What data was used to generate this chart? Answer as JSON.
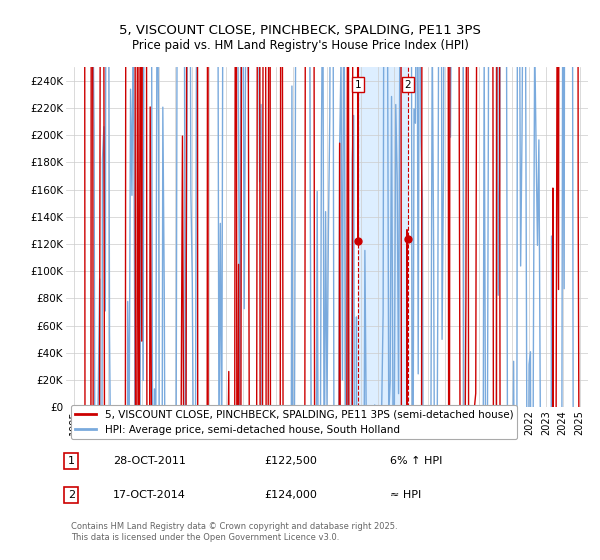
{
  "title": "5, VISCOUNT CLOSE, PINCHBECK, SPALDING, PE11 3PS",
  "subtitle": "Price paid vs. HM Land Registry's House Price Index (HPI)",
  "red_label": "5, VISCOUNT CLOSE, PINCHBECK, SPALDING, PE11 3PS (semi-detached house)",
  "blue_label": "HPI: Average price, semi-detached house, South Holland",
  "annotation1_date": "28-OCT-2011",
  "annotation1_price": "£122,500",
  "annotation1_hpi": "6% ↑ HPI",
  "annotation2_date": "17-OCT-2014",
  "annotation2_price": "£124,000",
  "annotation2_hpi": "≈ HPI",
  "footer": "Contains HM Land Registry data © Crown copyright and database right 2025.\nThis data is licensed under the Open Government Licence v3.0.",
  "red_color": "#cc0000",
  "blue_color": "#7aaadd",
  "highlight_color": "#ddeeff",
  "ymin": 0,
  "ymax": 250000,
  "yticks": [
    0,
    20000,
    40000,
    60000,
    80000,
    100000,
    120000,
    140000,
    160000,
    180000,
    200000,
    220000,
    240000
  ],
  "ytick_labels": [
    "£0",
    "£20K",
    "£40K",
    "£60K",
    "£80K",
    "£100K",
    "£120K",
    "£140K",
    "£160K",
    "£180K",
    "£200K",
    "£220K",
    "£240K"
  ],
  "xticks": [
    1995,
    1996,
    1997,
    1998,
    1999,
    2000,
    2001,
    2002,
    2003,
    2004,
    2005,
    2006,
    2007,
    2008,
    2009,
    2010,
    2011,
    2012,
    2013,
    2014,
    2015,
    2016,
    2017,
    2018,
    2019,
    2020,
    2021,
    2022,
    2023,
    2024,
    2025
  ],
  "xmin": 1994.5,
  "xmax": 2025.5,
  "marker1_x": 2011.83,
  "marker2_x": 2014.79,
  "marker1_y": 122500,
  "marker2_y": 124000,
  "bg_color": "#ffffff",
  "grid_color": "#cccccc"
}
